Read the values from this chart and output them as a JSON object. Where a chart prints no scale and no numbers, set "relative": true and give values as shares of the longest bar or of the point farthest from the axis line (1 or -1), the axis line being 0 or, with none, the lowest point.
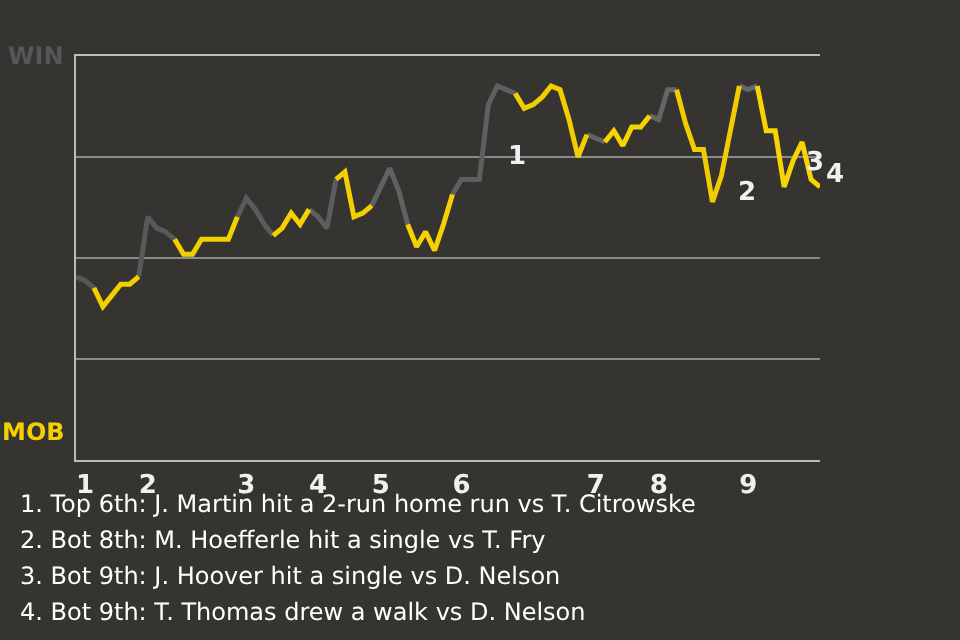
{
  "chart_data": {
    "type": "line",
    "relative": true,
    "categories": [
      null,
      "1",
      null,
      null,
      null,
      null,
      null,
      null,
      "2",
      null,
      null,
      null,
      null,
      null,
      null,
      null,
      null,
      null,
      null,
      "3",
      null,
      null,
      null,
      null,
      null,
      null,
      null,
      "4",
      null,
      null,
      null,
      null,
      null,
      null,
      "5",
      null,
      null,
      null,
      null,
      null,
      null,
      null,
      null,
      "6",
      null,
      null,
      null,
      null,
      null,
      null,
      null,
      null,
      null,
      null,
      null,
      null,
      null,
      null,
      "7",
      null,
      null,
      null,
      null,
      null,
      null,
      "8",
      null,
      null,
      null,
      null,
      null,
      null,
      null,
      null,
      null,
      "9",
      null,
      null,
      null,
      null,
      null,
      null,
      null,
      null
    ],
    "series": [
      {
        "color": "#56575a",
        "values": [
          0.49,
          0.48,
          0.46,
          null,
          null,
          null,
          null,
          null,
          null,
          null,
          null,
          null,
          null,
          null,
          null,
          null,
          null,
          null,
          null,
          null,
          null,
          null,
          null,
          null,
          null,
          null,
          null,
          null,
          null,
          null,
          null,
          null,
          null,
          null,
          null,
          null,
          null,
          null,
          null,
          null,
          null,
          null,
          null,
          null,
          null,
          null,
          null,
          null,
          null,
          null,
          null,
          null,
          null,
          null,
          null,
          null,
          null,
          null,
          null,
          null,
          null,
          null,
          null,
          null,
          null,
          null,
          null,
          null,
          null,
          null,
          null,
          null,
          null,
          null,
          null,
          null,
          null,
          null,
          null,
          null,
          null,
          null,
          null,
          null
        ]
      },
      {
        "color": "#f5d000",
        "values": [
          null,
          null,
          0.46,
          0.41,
          0.44,
          0.47,
          0.47,
          0.49,
          null,
          null,
          null,
          null,
          null,
          null,
          null,
          null,
          null,
          null,
          null,
          null,
          null,
          null,
          null,
          null,
          null,
          null,
          null,
          null,
          null,
          null,
          null,
          null,
          null,
          null,
          null,
          null,
          null,
          null,
          null,
          null,
          null,
          null,
          null,
          null,
          null,
          null,
          null,
          null,
          null,
          null,
          null,
          null,
          null,
          null,
          null,
          null,
          null,
          null,
          null,
          null,
          null,
          null,
          null,
          null,
          null,
          null,
          null,
          null,
          null,
          null,
          null,
          null,
          null,
          null,
          null,
          null,
          null,
          null,
          null,
          null,
          null,
          null,
          null,
          null
        ]
      },
      {
        "color": "#58595b",
        "values": [
          null,
          null,
          null,
          null,
          null,
          null,
          null,
          0.49,
          0.65,
          0.62,
          0.61,
          0.59,
          null,
          null,
          null,
          null,
          null,
          null,
          null,
          null,
          null,
          null,
          null,
          null,
          null,
          null,
          null,
          null,
          null,
          null,
          null,
          null,
          null,
          null,
          null,
          null,
          null,
          null,
          null,
          null,
          null,
          null,
          null,
          null,
          null,
          null,
          null,
          null,
          null,
          null,
          null,
          null,
          null,
          null,
          null,
          null,
          null,
          null,
          null,
          null,
          null,
          null,
          null,
          null,
          null,
          null,
          null,
          null,
          null,
          null,
          null,
          null,
          null,
          null,
          null,
          null,
          null,
          null,
          null,
          null,
          null,
          null,
          null,
          null
        ]
      },
      {
        "color": "#f4cf00",
        "values": [
          null,
          null,
          null,
          null,
          null,
          null,
          null,
          null,
          null,
          null,
          null,
          0.59,
          0.55,
          0.55,
          0.59,
          0.59,
          0.59,
          0.59,
          0.65,
          null,
          null,
          null,
          null,
          null,
          null,
          null,
          null,
          null,
          null,
          null,
          null,
          null,
          null,
          null,
          null,
          null,
          null,
          null,
          null,
          null,
          null,
          null,
          null,
          null,
          null,
          null,
          null,
          null,
          null,
          null,
          null,
          null,
          null,
          null,
          null,
          null,
          null,
          null,
          null,
          null,
          null,
          null,
          null,
          null,
          null,
          null,
          null,
          null,
          null,
          null,
          null,
          null,
          null,
          null,
          null,
          null,
          null,
          null,
          null,
          null,
          null,
          null,
          null,
          null
        ]
      },
      {
        "color": "#5a5b5d",
        "values": [
          null,
          null,
          null,
          null,
          null,
          null,
          null,
          null,
          null,
          null,
          null,
          null,
          null,
          null,
          null,
          null,
          null,
          null,
          0.65,
          0.7,
          0.67,
          0.63,
          0.6,
          null,
          null,
          null,
          null,
          null,
          null,
          null,
          null,
          null,
          null,
          null,
          null,
          null,
          null,
          null,
          null,
          null,
          null,
          null,
          null,
          null,
          null,
          null,
          null,
          null,
          null,
          null,
          null,
          null,
          null,
          null,
          null,
          null,
          null,
          null,
          null,
          null,
          null,
          null,
          null,
          null,
          null,
          null,
          null,
          null,
          null,
          null,
          null,
          null,
          null,
          null,
          null,
          null,
          null,
          null,
          null,
          null,
          null,
          null,
          null,
          null
        ]
      },
      {
        "color": "#f6d101",
        "values": [
          null,
          null,
          null,
          null,
          null,
          null,
          null,
          null,
          null,
          null,
          null,
          null,
          null,
          null,
          null,
          null,
          null,
          null,
          null,
          null,
          null,
          null,
          0.6,
          0.62,
          0.66,
          0.63,
          0.67,
          null,
          null,
          null,
          null,
          null,
          null,
          null,
          null,
          null,
          null,
          null,
          null,
          null,
          null,
          null,
          null,
          null,
          null,
          null,
          null,
          null,
          null,
          null,
          null,
          null,
          null,
          null,
          null,
          null,
          null,
          null,
          null,
          null,
          null,
          null,
          null,
          null,
          null,
          null,
          null,
          null,
          null,
          null,
          null,
          null,
          null,
          null,
          null,
          null,
          null,
          null,
          null,
          null,
          null,
          null,
          null,
          null
        ]
      },
      {
        "color": "#5c5d5f",
        "values": [
          null,
          null,
          null,
          null,
          null,
          null,
          null,
          null,
          null,
          null,
          null,
          null,
          null,
          null,
          null,
          null,
          null,
          null,
          null,
          null,
          null,
          null,
          null,
          null,
          null,
          null,
          0.67,
          0.65,
          0.62,
          0.75,
          null,
          null,
          null,
          null,
          null,
          null,
          null,
          null,
          null,
          null,
          null,
          null,
          null,
          null,
          null,
          null,
          null,
          null,
          null,
          null,
          null,
          null,
          null,
          null,
          null,
          null,
          null,
          null,
          null,
          null,
          null,
          null,
          null,
          null,
          null,
          null,
          null,
          null,
          null,
          null,
          null,
          null,
          null,
          null,
          null,
          null,
          null,
          null,
          null,
          null,
          null,
          null,
          null,
          null
        ]
      },
      {
        "color": "#f3ce00",
        "values": [
          null,
          null,
          null,
          null,
          null,
          null,
          null,
          null,
          null,
          null,
          null,
          null,
          null,
          null,
          null,
          null,
          null,
          null,
          null,
          null,
          null,
          null,
          null,
          null,
          null,
          null,
          null,
          null,
          null,
          0.75,
          0.77,
          0.65,
          0.66,
          0.68,
          null,
          null,
          null,
          null,
          null,
          null,
          null,
          null,
          null,
          null,
          null,
          null,
          null,
          null,
          null,
          null,
          null,
          null,
          null,
          null,
          null,
          null,
          null,
          null,
          null,
          null,
          null,
          null,
          null,
          null,
          null,
          null,
          null,
          null,
          null,
          null,
          null,
          null,
          null,
          null,
          null,
          null,
          null,
          null,
          null,
          null,
          null,
          null,
          null,
          null
        ]
      },
      {
        "color": "#606163",
        "values": [
          null,
          null,
          null,
          null,
          null,
          null,
          null,
          null,
          null,
          null,
          null,
          null,
          null,
          null,
          null,
          null,
          null,
          null,
          null,
          null,
          null,
          null,
          null,
          null,
          null,
          null,
          null,
          null,
          null,
          null,
          null,
          null,
          null,
          0.68,
          0.73,
          0.78,
          0.72,
          0.63,
          null,
          null,
          null,
          null,
          null,
          null,
          null,
          null,
          null,
          null,
          null,
          null,
          null,
          null,
          null,
          null,
          null,
          null,
          null,
          null,
          null,
          null,
          null,
          null,
          null,
          null,
          null,
          null,
          null,
          null,
          null,
          null,
          null,
          null,
          null,
          null,
          null,
          null,
          null,
          null,
          null,
          null,
          null,
          null,
          null,
          null
        ]
      },
      {
        "color": "#f7d202",
        "values": [
          null,
          null,
          null,
          null,
          null,
          null,
          null,
          null,
          null,
          null,
          null,
          null,
          null,
          null,
          null,
          null,
          null,
          null,
          null,
          null,
          null,
          null,
          null,
          null,
          null,
          null,
          null,
          null,
          null,
          null,
          null,
          null,
          null,
          null,
          null,
          null,
          null,
          0.63,
          0.57,
          0.61,
          0.56,
          0.63,
          0.71,
          null,
          null,
          null,
          null,
          null,
          null,
          null,
          null,
          null,
          null,
          null,
          null,
          null,
          null,
          null,
          null,
          null,
          null,
          null,
          null,
          null,
          null,
          null,
          null,
          null,
          null,
          null,
          null,
          null,
          null,
          null,
          null,
          null,
          null,
          null,
          null,
          null,
          null,
          null,
          null,
          null
        ]
      },
      {
        "color": "#5e5f61",
        "values": [
          null,
          null,
          null,
          null,
          null,
          null,
          null,
          null,
          null,
          null,
          null,
          null,
          null,
          null,
          null,
          null,
          null,
          null,
          null,
          null,
          null,
          null,
          null,
          null,
          null,
          null,
          null,
          null,
          null,
          null,
          null,
          null,
          null,
          null,
          null,
          null,
          null,
          null,
          null,
          null,
          null,
          null,
          0.71,
          0.75,
          0.75,
          0.75,
          0.95,
          1,
          0.99,
          0.98,
          null,
          null,
          null,
          null,
          null,
          null,
          null,
          null,
          null,
          null,
          null,
          null,
          null,
          null,
          null,
          null,
          null,
          null,
          null,
          null,
          null,
          null,
          null,
          null,
          null,
          null,
          null,
          null,
          null,
          null,
          null,
          null,
          null,
          null
        ]
      },
      {
        "color": "#f2cd00",
        "values": [
          null,
          null,
          null,
          null,
          null,
          null,
          null,
          null,
          null,
          null,
          null,
          null,
          null,
          null,
          null,
          null,
          null,
          null,
          null,
          null,
          null,
          null,
          null,
          null,
          null,
          null,
          null,
          null,
          null,
          null,
          null,
          null,
          null,
          null,
          null,
          null,
          null,
          null,
          null,
          null,
          null,
          null,
          null,
          null,
          null,
          null,
          null,
          null,
          null,
          0.98,
          0.94,
          0.95,
          0.97,
          1,
          0.99,
          0.91,
          0.81,
          0.87,
          null,
          null,
          null,
          null,
          null,
          null,
          null,
          null,
          null,
          null,
          null,
          null,
          null,
          null,
          null,
          null,
          null,
          null,
          null,
          null,
          null,
          null,
          null,
          null,
          null,
          null
        ]
      },
      {
        "color": "#626365",
        "values": [
          null,
          null,
          null,
          null,
          null,
          null,
          null,
          null,
          null,
          null,
          null,
          null,
          null,
          null,
          null,
          null,
          null,
          null,
          null,
          null,
          null,
          null,
          null,
          null,
          null,
          null,
          null,
          null,
          null,
          null,
          null,
          null,
          null,
          null,
          null,
          null,
          null,
          null,
          null,
          null,
          null,
          null,
          null,
          null,
          null,
          null,
          null,
          null,
          null,
          null,
          null,
          null,
          null,
          null,
          null,
          null,
          null,
          0.87,
          0.86,
          0.85,
          null,
          null,
          null,
          null,
          null,
          null,
          null,
          null,
          null,
          null,
          null,
          null,
          null,
          null,
          null,
          null,
          null,
          null,
          null,
          null,
          null,
          null,
          null,
          null
        ]
      },
      {
        "color": "#f8d303",
        "values": [
          null,
          null,
          null,
          null,
          null,
          null,
          null,
          null,
          null,
          null,
          null,
          null,
          null,
          null,
          null,
          null,
          null,
          null,
          null,
          null,
          null,
          null,
          null,
          null,
          null,
          null,
          null,
          null,
          null,
          null,
          null,
          null,
          null,
          null,
          null,
          null,
          null,
          null,
          null,
          null,
          null,
          null,
          null,
          null,
          null,
          null,
          null,
          null,
          null,
          null,
          null,
          null,
          null,
          null,
          null,
          null,
          null,
          null,
          null,
          0.85,
          0.88,
          0.84,
          0.89,
          0.89,
          0.92,
          null,
          null,
          null,
          null,
          null,
          null,
          null,
          null,
          null,
          null,
          null,
          null,
          null,
          null,
          null,
          null,
          null,
          null,
          null
        ]
      },
      {
        "color": "#646567",
        "values": [
          null,
          null,
          null,
          null,
          null,
          null,
          null,
          null,
          null,
          null,
          null,
          null,
          null,
          null,
          null,
          null,
          null,
          null,
          null,
          null,
          null,
          null,
          null,
          null,
          null,
          null,
          null,
          null,
          null,
          null,
          null,
          null,
          null,
          null,
          null,
          null,
          null,
          null,
          null,
          null,
          null,
          null,
          null,
          null,
          null,
          null,
          null,
          null,
          null,
          null,
          null,
          null,
          null,
          null,
          null,
          null,
          null,
          null,
          null,
          null,
          null,
          null,
          null,
          null,
          0.92,
          0.91,
          0.99,
          0.99,
          null,
          null,
          null,
          null,
          null,
          null,
          null,
          null,
          null,
          null,
          null,
          null,
          null,
          null,
          null,
          null
        ]
      },
      {
        "color": "#f1cc00",
        "values": [
          null,
          null,
          null,
          null,
          null,
          null,
          null,
          null,
          null,
          null,
          null,
          null,
          null,
          null,
          null,
          null,
          null,
          null,
          null,
          null,
          null,
          null,
          null,
          null,
          null,
          null,
          null,
          null,
          null,
          null,
          null,
          null,
          null,
          null,
          null,
          null,
          null,
          null,
          null,
          null,
          null,
          null,
          null,
          null,
          null,
          null,
          null,
          null,
          null,
          null,
          null,
          null,
          null,
          null,
          null,
          null,
          null,
          null,
          null,
          null,
          null,
          null,
          null,
          null,
          null,
          null,
          null,
          0.99,
          0.9,
          0.83,
          0.83,
          0.69,
          0.76,
          0.88,
          1,
          null,
          null,
          null,
          null,
          null,
          null,
          null,
          null,
          null
        ]
      },
      {
        "color": "#666769",
        "values": [
          null,
          null,
          null,
          null,
          null,
          null,
          null,
          null,
          null,
          null,
          null,
          null,
          null,
          null,
          null,
          null,
          null,
          null,
          null,
          null,
          null,
          null,
          null,
          null,
          null,
          null,
          null,
          null,
          null,
          null,
          null,
          null,
          null,
          null,
          null,
          null,
          null,
          null,
          null,
          null,
          null,
          null,
          null,
          null,
          null,
          null,
          null,
          null,
          null,
          null,
          null,
          null,
          null,
          null,
          null,
          null,
          null,
          null,
          null,
          null,
          null,
          null,
          null,
          null,
          null,
          null,
          null,
          null,
          null,
          null,
          null,
          null,
          null,
          null,
          1,
          0.99,
          1,
          null,
          null,
          null,
          null,
          null,
          null,
          null
        ]
      },
      {
        "color": "#f9d404",
        "values": [
          null,
          null,
          null,
          null,
          null,
          null,
          null,
          null,
          null,
          null,
          null,
          null,
          null,
          null,
          null,
          null,
          null,
          null,
          null,
          null,
          null,
          null,
          null,
          null,
          null,
          null,
          null,
          null,
          null,
          null,
          null,
          null,
          null,
          null,
          null,
          null,
          null,
          null,
          null,
          null,
          null,
          null,
          null,
          null,
          null,
          null,
          null,
          null,
          null,
          null,
          null,
          null,
          null,
          null,
          null,
          null,
          null,
          null,
          null,
          null,
          null,
          null,
          null,
          null,
          null,
          null,
          null,
          null,
          null,
          null,
          null,
          null,
          null,
          null,
          null,
          null,
          1,
          0.88,
          0.88,
          0.73,
          0.8,
          0.85,
          0.75,
          0.73
        ]
      }
    ],
    "grid": "y",
    "annotations": [
      "WIN",
      "MOB",
      "1",
      "2",
      "3",
      "4",
      "1. Top 6th: J. Martin hit a 2-run home run vs T. Citrowske",
      "2. Bot 8th: M. Hoefferle hit a single vs T. Fry",
      "3. Bot 9th: J. Hoover hit a single vs D. Nelson",
      "4. Bot 9th: T. Thomas drew a walk vs D. Nelson"
    ]
  }
}
